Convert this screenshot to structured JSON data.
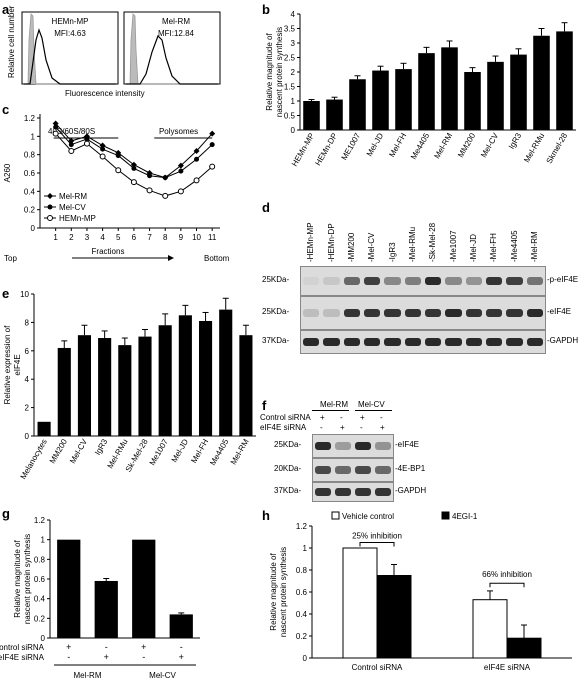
{
  "panel_labels": {
    "a": "a",
    "b": "b",
    "c": "c",
    "d": "d",
    "e": "e",
    "f": "f",
    "g": "g",
    "h": "h"
  },
  "panel_a": {
    "ylabel": "Relative cell number",
    "xlabel": "Fluorescence intensity",
    "boxes": [
      {
        "name": "HEMn-MP",
        "mfi": "MFI:4.63"
      },
      {
        "name": "Mel-RM",
        "mfi": "MFI:12.84"
      }
    ]
  },
  "panel_c_text": {
    "ylabel": "A260",
    "xlabel": "Fractions",
    "annot_left": "40S/60S/80S",
    "annot_right": "Polysomes",
    "top": "Top",
    "bottom": "Bottom"
  },
  "panel_d": {
    "lanes": [
      "-HEMn-MP",
      "-HEMn-DP",
      "-MM200",
      "-Mel-CV",
      "-IgR3",
      "-Mel-RMu",
      "-Sk-Mel-28",
      "-Me1007",
      "-Mel-JD",
      "-Mel-FH",
      "-Me4405",
      "-Mel-RM"
    ],
    "rows": [
      {
        "kda": "25KDa-",
        "name": "-p-eIF4E",
        "intensity": [
          0.05,
          0.1,
          0.55,
          0.75,
          0.4,
          0.45,
          0.85,
          0.4,
          0.35,
          0.8,
          0.75,
          0.5
        ]
      },
      {
        "kda": "25KDa-",
        "name": "-eIF4E",
        "intensity": [
          0.15,
          0.15,
          0.8,
          0.8,
          0.8,
          0.8,
          0.8,
          0.85,
          0.8,
          0.8,
          0.8,
          0.85
        ]
      },
      {
        "kda": "37KDa-",
        "name": "-GAPDH",
        "intensity": [
          0.85,
          0.85,
          0.85,
          0.85,
          0.85,
          0.85,
          0.85,
          0.85,
          0.85,
          0.85,
          0.85,
          0.85
        ]
      }
    ]
  },
  "panel_f": {
    "groups": [
      "Mel-RM",
      "Mel-CV"
    ],
    "rowlabels": [
      "Control siRNA",
      "eIF4E siRNA"
    ],
    "control_signs": [
      "+",
      "-",
      "+",
      "-"
    ],
    "eif4e_signs": [
      "-",
      "+",
      "-",
      "+"
    ],
    "rows": [
      {
        "kda": "25KDa-",
        "name": "-eIF4E",
        "intensity": [
          0.85,
          0.3,
          0.85,
          0.35
        ]
      },
      {
        "kda": "20KDa-",
        "name": "-4E-BP1",
        "intensity": [
          0.7,
          0.55,
          0.7,
          0.55
        ]
      },
      {
        "kda": "37KDa-",
        "name": "-GAPDH",
        "intensity": [
          0.8,
          0.8,
          0.8,
          0.8
        ]
      }
    ]
  },
  "panel_g_text": {
    "row1": "Control siRNA",
    "row2": "eIF4E siRNA",
    "signs1": [
      "+",
      "-",
      "+",
      "-"
    ],
    "signs2": [
      "-",
      "+",
      "-",
      "+"
    ],
    "groups": [
      "Mel-RM",
      "Mel-CV"
    ]
  },
  "panel_h_text": {
    "annot1": "25% inhibition",
    "annot2": "66% inhibition"
  },
  "chart_data": [
    {
      "id": "b",
      "type": "bar",
      "categories": [
        "HEMn-MP",
        "HEMn-DP",
        "ME1007",
        "Mel-JD",
        "Mel-FH",
        "Me4405",
        "Mel-RM",
        "MM200",
        "Mel-CV",
        "IgR3",
        "Mel-RMu",
        "Skmel-28"
      ],
      "values": [
        1.0,
        1.05,
        1.75,
        2.05,
        2.1,
        2.65,
        2.85,
        2.0,
        2.35,
        2.6,
        3.25,
        3.4
      ],
      "errors": [
        0.05,
        0.08,
        0.12,
        0.15,
        0.2,
        0.2,
        0.22,
        0.15,
        0.2,
        0.2,
        0.25,
        0.3
      ],
      "ylabel": "Relative magnitude of nascent protein synthesis",
      "ylim": [
        0,
        4
      ],
      "yticks": [
        "0",
        "0.5",
        "1",
        "1.5",
        "2",
        "2.5",
        "3",
        "3.5",
        "4"
      ]
    },
    {
      "id": "c",
      "type": "line",
      "x": [
        1,
        2,
        3,
        4,
        5,
        6,
        7,
        8,
        9,
        10,
        11
      ],
      "xticks": [
        "1",
        "2",
        "3",
        "4",
        "5",
        "6",
        "7",
        "8",
        "9",
        "10",
        "11"
      ],
      "ylim": [
        0,
        1.2
      ],
      "yticks": [
        "0",
        "0.2",
        "0.4",
        "0.6",
        "0.8",
        "1",
        "1.2"
      ],
      "ylabel": "A260",
      "xlabel": "Fractions",
      "series": [
        {
          "name": "Mel-RM",
          "marker": "filled-diamond",
          "values": [
            1.14,
            0.95,
            1.0,
            0.9,
            0.82,
            0.69,
            0.6,
            0.55,
            0.68,
            0.84,
            1.03
          ]
        },
        {
          "name": "Mel-CV",
          "marker": "filled-circle",
          "values": [
            1.1,
            0.91,
            0.97,
            0.86,
            0.79,
            0.65,
            0.57,
            0.55,
            0.62,
            0.75,
            0.91
          ]
        },
        {
          "name": "HEMn-MP",
          "marker": "open-circle",
          "values": [
            1.03,
            0.84,
            0.92,
            0.78,
            0.63,
            0.5,
            0.41,
            0.35,
            0.4,
            0.52,
            0.67
          ]
        }
      ]
    },
    {
      "id": "e",
      "type": "bar",
      "categories": [
        "Melanocytes",
        "MM200",
        "Mel-CV",
        "IgR3",
        "Mel-RMu",
        "Sk-Mel-28",
        "Me1007",
        "Mel-JD",
        "Mel-FH",
        "Me4405",
        "Mel-RM"
      ],
      "values": [
        1.0,
        6.2,
        7.1,
        6.9,
        6.4,
        7.0,
        7.8,
        8.5,
        8.1,
        8.9,
        7.1
      ],
      "errors": [
        0,
        0.5,
        0.7,
        0.5,
        0.5,
        0.5,
        0.8,
        0.7,
        0.6,
        0.8,
        0.7
      ],
      "ylabel": "Relative expression of eIF4E",
      "ylim": [
        0,
        10
      ],
      "yticks": [
        "0",
        "2",
        "4",
        "6",
        "8",
        "10"
      ]
    },
    {
      "id": "g",
      "type": "bar",
      "categories": [
        "Mel-RM control",
        "Mel-RM eIF4E",
        "Mel-CV control",
        "Mel-CV eIF4E"
      ],
      "values": [
        1.0,
        0.58,
        1.0,
        0.24
      ],
      "errors": [
        0,
        0.025,
        0,
        0.015
      ],
      "ylabel": "Relative magnitude of nascent protein synthesis",
      "ylim": [
        0,
        1.2
      ],
      "yticks": [
        "0",
        "0.2",
        "0.4",
        "0.6",
        "0.8",
        "1",
        "1.2"
      ]
    },
    {
      "id": "h",
      "type": "bar",
      "categories": [
        "Control siRNA",
        "eIF4E siRNA"
      ],
      "series": [
        {
          "name": "Vehicle control",
          "color": "#ffffff",
          "values": [
            1.0,
            0.53
          ],
          "errors": [
            0,
            0.08
          ]
        },
        {
          "name": "4EGI-1",
          "color": "#000000",
          "values": [
            0.75,
            0.18
          ],
          "errors": [
            0.1,
            0.12
          ]
        }
      ],
      "ylabel": "Relative magnitude of nascent protein synthesis",
      "ylim": [
        0,
        1.2
      ],
      "yticks": [
        "0",
        "0.2",
        "0.4",
        "0.6",
        "0.8",
        "1",
        "1.2"
      ]
    }
  ]
}
